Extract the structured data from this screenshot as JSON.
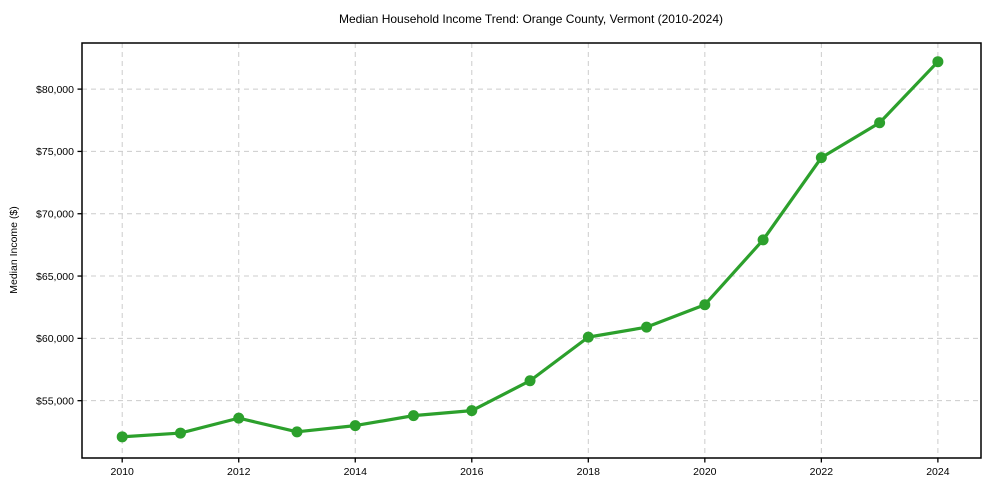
{
  "chart_data": {
    "type": "line",
    "title": "Median Household Income Trend: Orange County, Vermont (2010-2024)",
    "xlabel": "",
    "ylabel": "Median Income ($)",
    "x": [
      2010,
      2011,
      2012,
      2013,
      2014,
      2015,
      2016,
      2017,
      2018,
      2019,
      2020,
      2021,
      2022,
      2023,
      2024
    ],
    "values": [
      52100,
      52400,
      53600,
      52500,
      53000,
      53800,
      54200,
      56600,
      60100,
      60900,
      62700,
      67900,
      74500,
      77300,
      82200
    ],
    "series_name": "Median Household Income",
    "xlim": [
      2009.31,
      2024.74
    ],
    "ylim": [
      50400,
      83700
    ],
    "xticks": [
      2010,
      2012,
      2014,
      2016,
      2018,
      2020,
      2022,
      2024
    ],
    "xtick_labels": [
      "2010",
      "2012",
      "2014",
      "2016",
      "2018",
      "2020",
      "2022",
      "2024"
    ],
    "yticks": [
      55000,
      60000,
      65000,
      70000,
      75000,
      80000
    ],
    "ytick_labels": [
      "$55,000",
      "$60,000",
      "$65,000",
      "$70,000",
      "$75,000",
      "$80,000"
    ],
    "grid": true,
    "grid_style": "dashed",
    "legend": "none",
    "colors": {
      "line": "#2ca02c",
      "marker": "#2ca02c",
      "grid": "#cccccc",
      "axis": "#000000",
      "text": "#000000",
      "background": "#ffffff"
    }
  }
}
